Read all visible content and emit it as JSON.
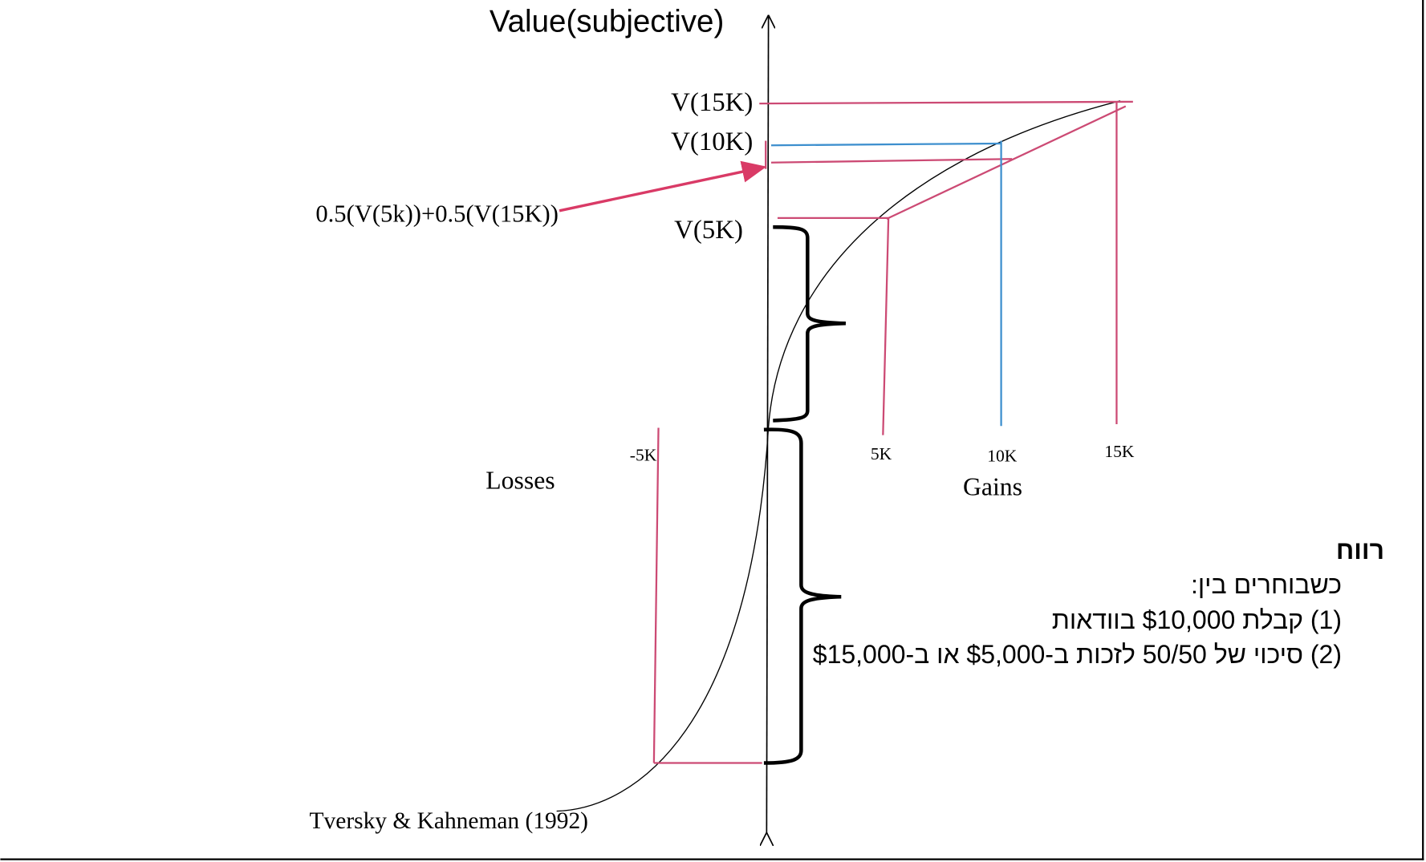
{
  "diagram": {
    "y_axis_label": "Value(subjective)",
    "value_labels": {
      "v15k": "V(15K)",
      "v10k": "V(10K)",
      "v5k": "V(5K)"
    },
    "expected_value_label": "0.5(V(5k))+0.5(V(15K))",
    "x_ticks": {
      "neg5k": "-5K",
      "5k": "5K",
      "10k": "10K",
      "15k": "15K"
    },
    "losses_label": "Losses",
    "gains_label": "Gains",
    "citation": "Tversky & Kahneman (1992)",
    "colors": {
      "pink": "#cc4a74",
      "blue": "#3d8fce",
      "arrow": "#d93a66",
      "curve": "#000000"
    }
  },
  "text_box": {
    "title": "רווח",
    "lines": [
      "כשבוחרים בין:",
      "(1) קבלת $10,000 בוודאות",
      "(2) סיכוי של 50/50 לזכות ב-$5,000 או ב-$15,000"
    ]
  }
}
